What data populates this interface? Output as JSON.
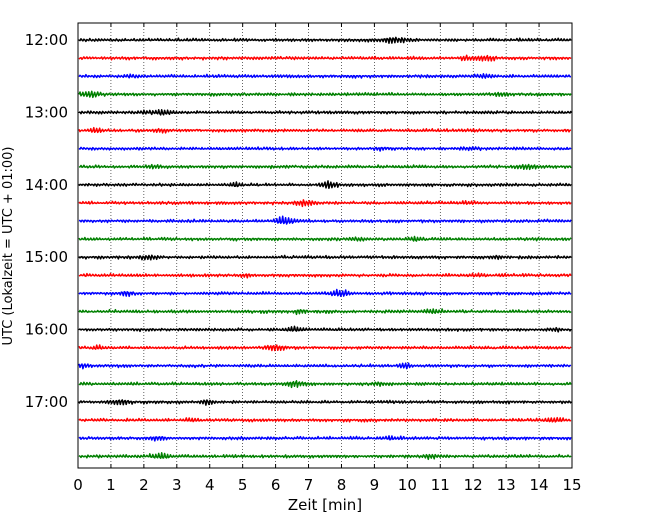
{
  "chart_data": {
    "type": "line",
    "title": "",
    "xlabel": "Zeit  [min]",
    "ylabel": "UTC (Lokalzeit = UTC + 01:00)",
    "x_ticks": [
      "0",
      "1",
      "2",
      "3",
      "4",
      "5",
      "6",
      "7",
      "8",
      "9",
      "10",
      "11",
      "12",
      "13",
      "14",
      "15"
    ],
    "xlim": [
      0,
      15
    ],
    "y_ticks": [
      "12:00",
      "13:00",
      "14:00",
      "15:00",
      "16:00",
      "17:00"
    ],
    "trace_interval_minutes": 15,
    "trace_start": "12:00",
    "trace_count": 24,
    "colors": [
      "#000000",
      "#ff0000",
      "#0000ff",
      "#008000"
    ],
    "grid": "vertical dotted lines at each minute"
  }
}
